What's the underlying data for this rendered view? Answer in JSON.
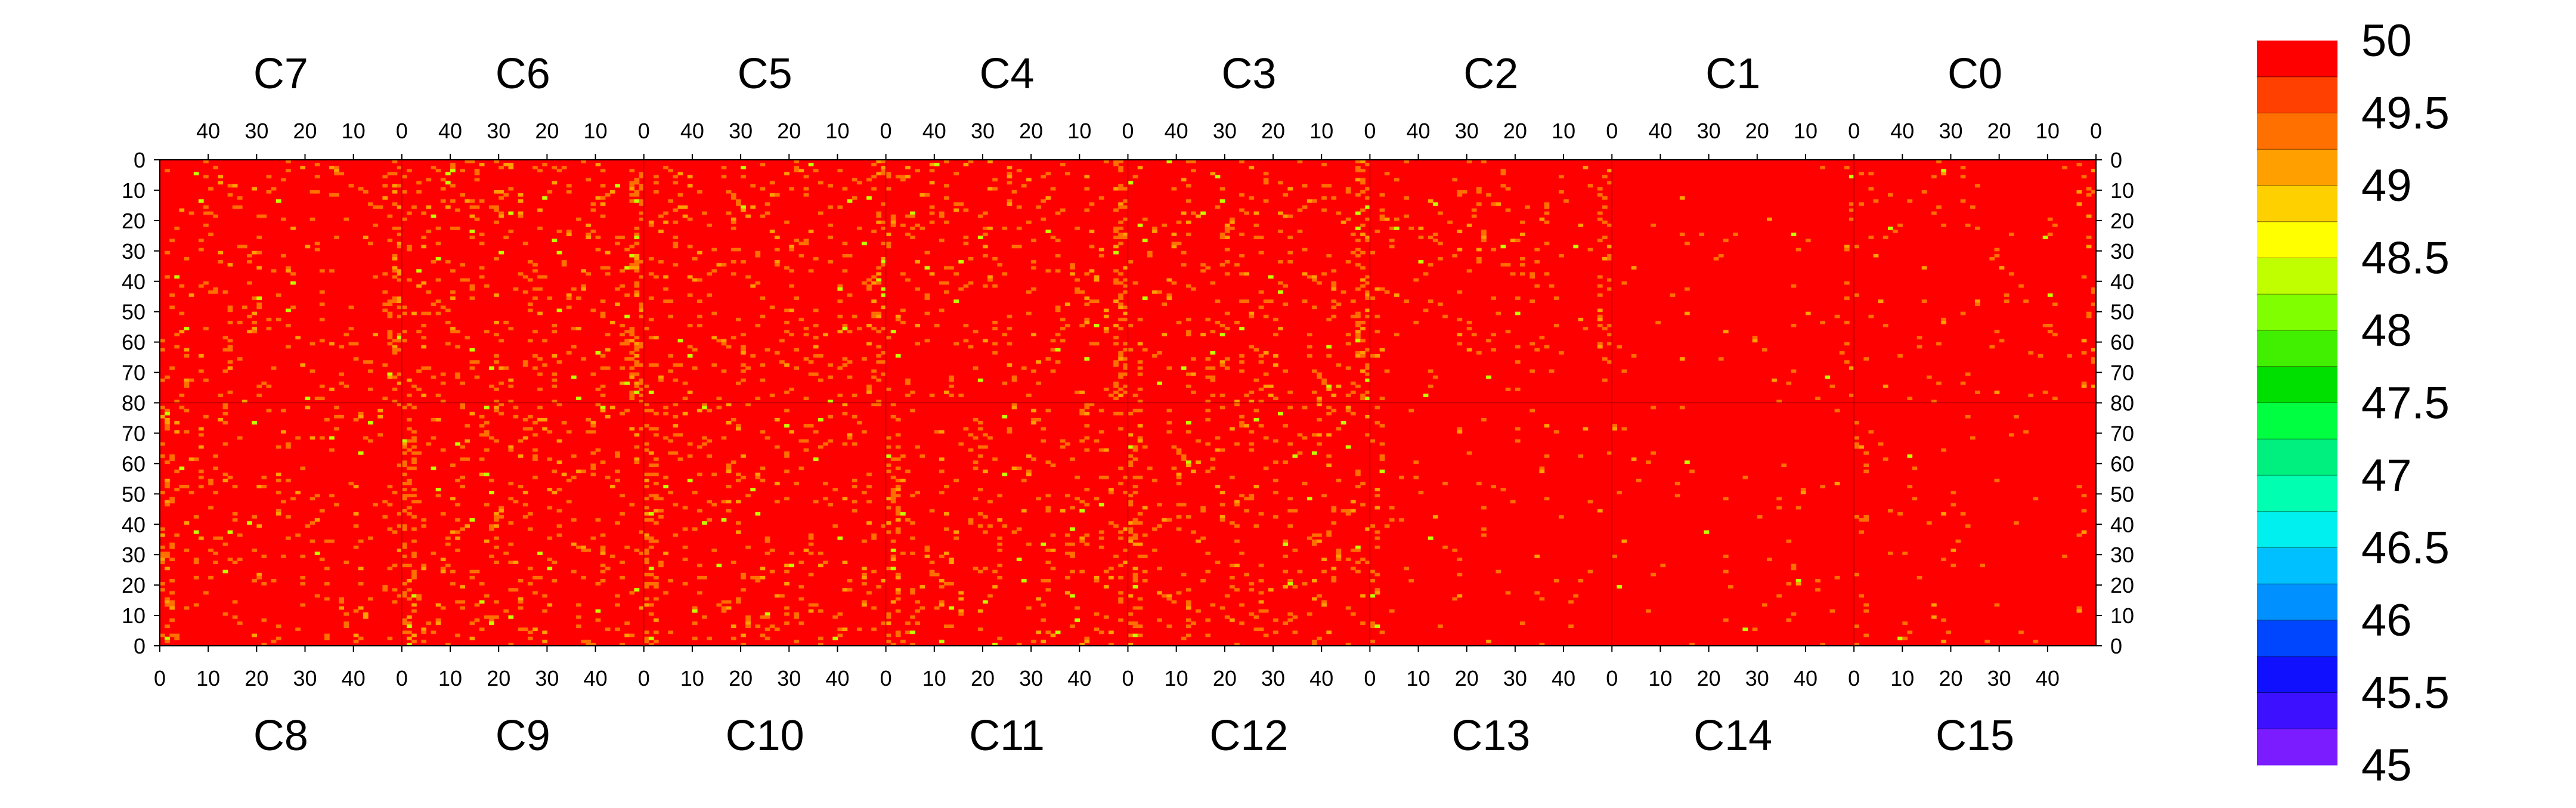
{
  "chart_data": {
    "type": "heatmap",
    "title": "",
    "top_panels": [
      {
        "label": "C7"
      },
      {
        "label": "C6"
      },
      {
        "label": "C5"
      },
      {
        "label": "C4"
      },
      {
        "label": "C3"
      },
      {
        "label": "C2"
      },
      {
        "label": "C1"
      },
      {
        "label": "C0"
      }
    ],
    "bottom_panels": [
      {
        "label": "C8"
      },
      {
        "label": "C9"
      },
      {
        "label": "C10"
      },
      {
        "label": "C11"
      },
      {
        "label": "C12"
      },
      {
        "label": "C13"
      },
      {
        "label": "C14"
      },
      {
        "label": "C15"
      }
    ],
    "x_range": [
      0,
      50
    ],
    "top_x_ticks": [
      40,
      30,
      20,
      10,
      0
    ],
    "bottom_x_ticks": [
      0,
      10,
      20,
      30,
      40
    ],
    "y_range_per_half": [
      0,
      80
    ],
    "left_y_ticks_top": [
      0,
      10,
      20,
      30,
      40,
      50,
      60,
      70,
      80
    ],
    "left_y_ticks_bottom": [
      70,
      60,
      50,
      40,
      30,
      20,
      10,
      0
    ],
    "colorbar": {
      "min": 45,
      "max": 50,
      "tick_labels": [
        "50",
        "49.5",
        "49",
        "48.5",
        "48",
        "47.5",
        "47",
        "46.5",
        "46",
        "45.5",
        "45"
      ],
      "colors": [
        "#7a1cff",
        "#3d10ff",
        "#1010ff",
        "#0046ff",
        "#0090ff",
        "#00c0ff",
        "#00f0f0",
        "#00ffb0",
        "#00f080",
        "#00ff40",
        "#00e000",
        "#40f000",
        "#80ff00",
        "#c0ff00",
        "#ffff00",
        "#ffd000",
        "#ffa000",
        "#ff7000",
        "#ff4000",
        "#ff0000"
      ]
    },
    "value_summary": "Most cells are 50 (red); scattered cells around 49.0–49.5 (orange/yellow) and a few near 48 (green), concentrated near x=0 of panels C7–C3.",
    "background_value": 50
  }
}
